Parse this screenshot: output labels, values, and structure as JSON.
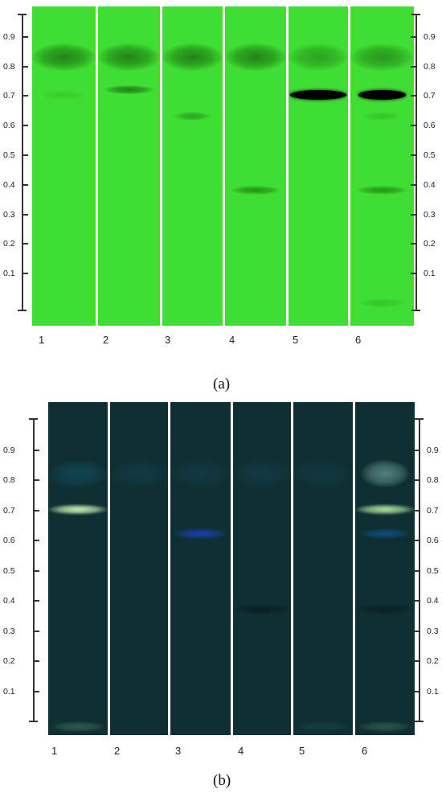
{
  "figures": [
    {
      "id": "a",
      "caption": "(a)",
      "plate_color": "#3fde33",
      "lanes": [
        {
          "label": "1",
          "bands": [
            {
              "rf": 0.83,
              "color": "#1f7a12",
              "intensity": 0.9,
              "width": 1.0
            },
            {
              "rf": 0.7,
              "color": "#2ea524",
              "intensity": 0.35,
              "width": 0.7
            }
          ]
        },
        {
          "label": "2",
          "bands": [
            {
              "rf": 0.83,
              "color": "#1f7a12",
              "intensity": 0.9,
              "width": 1.0
            },
            {
              "rf": 0.72,
              "color": "#1c6e12",
              "intensity": 0.85,
              "width": 0.8
            }
          ]
        },
        {
          "label": "3",
          "bands": [
            {
              "rf": 0.83,
              "color": "#1f7a12",
              "intensity": 0.9,
              "width": 1.0
            },
            {
              "rf": 0.63,
              "color": "#248a18",
              "intensity": 0.7,
              "width": 0.6
            }
          ]
        },
        {
          "label": "4",
          "bands": [
            {
              "rf": 0.83,
              "color": "#1f7a12",
              "intensity": 0.9,
              "width": 1.0
            },
            {
              "rf": 0.38,
              "color": "#1e7414",
              "intensity": 0.75,
              "width": 0.8
            }
          ]
        },
        {
          "label": "5",
          "bands": [
            {
              "rf": 0.83,
              "color": "#1f7a12",
              "intensity": 0.6,
              "width": 1.0
            },
            {
              "rf": 0.7,
              "color": "#000000",
              "intensity": 1.0,
              "width": 0.95,
              "sharp": true
            }
          ]
        },
        {
          "label": "6",
          "bands": [
            {
              "rf": 0.83,
              "color": "#1f7a12",
              "intensity": 0.7,
              "width": 1.0
            },
            {
              "rf": 0.7,
              "color": "#000000",
              "intensity": 1.0,
              "width": 0.75,
              "sharp": true
            },
            {
              "rf": 0.63,
              "color": "#2a9a20",
              "intensity": 0.4,
              "width": 0.6
            },
            {
              "rf": 0.38,
              "color": "#1e7414",
              "intensity": 0.7,
              "width": 0.8
            },
            {
              "rf": 0.0,
              "color": "#2a9a20",
              "intensity": 0.4,
              "width": 0.7
            }
          ]
        }
      ],
      "axis_ticks": [
        "0.9",
        "0.8",
        "0.7",
        "0.6",
        "0.5",
        "0.4",
        "0.3",
        "0.2",
        "0.1"
      ],
      "tick_values": [
        0.9,
        0.8,
        0.7,
        0.6,
        0.5,
        0.4,
        0.3,
        0.2,
        0.1
      ]
    },
    {
      "id": "b",
      "caption": "(b)",
      "plate_color": "#0f3032",
      "lanes": [
        {
          "label": "1",
          "bands": [
            {
              "rf": 0.82,
              "color": "#104a5c",
              "intensity": 0.8,
              "width": 1.0
            },
            {
              "rf": 0.7,
              "color": "#c8f7b8",
              "intensity": 1.0,
              "width": 1.0,
              "glow": true
            },
            {
              "rf": -0.02,
              "color": "#3f6b5a",
              "intensity": 0.7,
              "width": 0.9
            }
          ]
        },
        {
          "label": "2",
          "bands": [
            {
              "rf": 0.82,
              "color": "#12415a",
              "intensity": 0.5,
              "width": 1.0
            }
          ]
        },
        {
          "label": "3",
          "bands": [
            {
              "rf": 0.82,
              "color": "#12415a",
              "intensity": 0.45,
              "width": 1.0
            },
            {
              "rf": 0.62,
              "color": "#1b3fae",
              "intensity": 1.0,
              "width": 0.9,
              "glow": true
            }
          ]
        },
        {
          "label": "4",
          "bands": [
            {
              "rf": 0.82,
              "color": "#12415a",
              "intensity": 0.5,
              "width": 1.0
            },
            {
              "rf": 0.37,
              "color": "#0a1c22",
              "intensity": 0.9,
              "width": 1.0
            }
          ]
        },
        {
          "label": "5",
          "bands": [
            {
              "rf": 0.82,
              "color": "#12415a",
              "intensity": 0.4,
              "width": 1.0
            },
            {
              "rf": -0.02,
              "color": "#1b4a4a",
              "intensity": 0.5,
              "width": 0.9
            }
          ]
        },
        {
          "label": "6",
          "bands": [
            {
              "rf": 0.82,
              "color": "#6fa39a",
              "intensity": 0.7,
              "width": 0.8
            },
            {
              "rf": 0.7,
              "color": "#b8f0a8",
              "intensity": 0.95,
              "width": 1.0,
              "glow": true
            },
            {
              "rf": 0.62,
              "color": "#0d4c88",
              "intensity": 0.9,
              "width": 0.8
            },
            {
              "rf": 0.37,
              "color": "#0a1c22",
              "intensity": 0.8,
              "width": 1.0
            },
            {
              "rf": -0.02,
              "color": "#3f6b5a",
              "intensity": 0.6,
              "width": 0.9
            }
          ]
        }
      ],
      "axis_ticks": [
        "0.9",
        "0.8",
        "0.7",
        "0.6",
        "0.5",
        "0.4",
        "0.3",
        "0.2",
        "0.1"
      ],
      "tick_values": [
        0.9,
        0.8,
        0.7,
        0.6,
        0.5,
        0.4,
        0.3,
        0.2,
        0.1
      ]
    }
  ]
}
